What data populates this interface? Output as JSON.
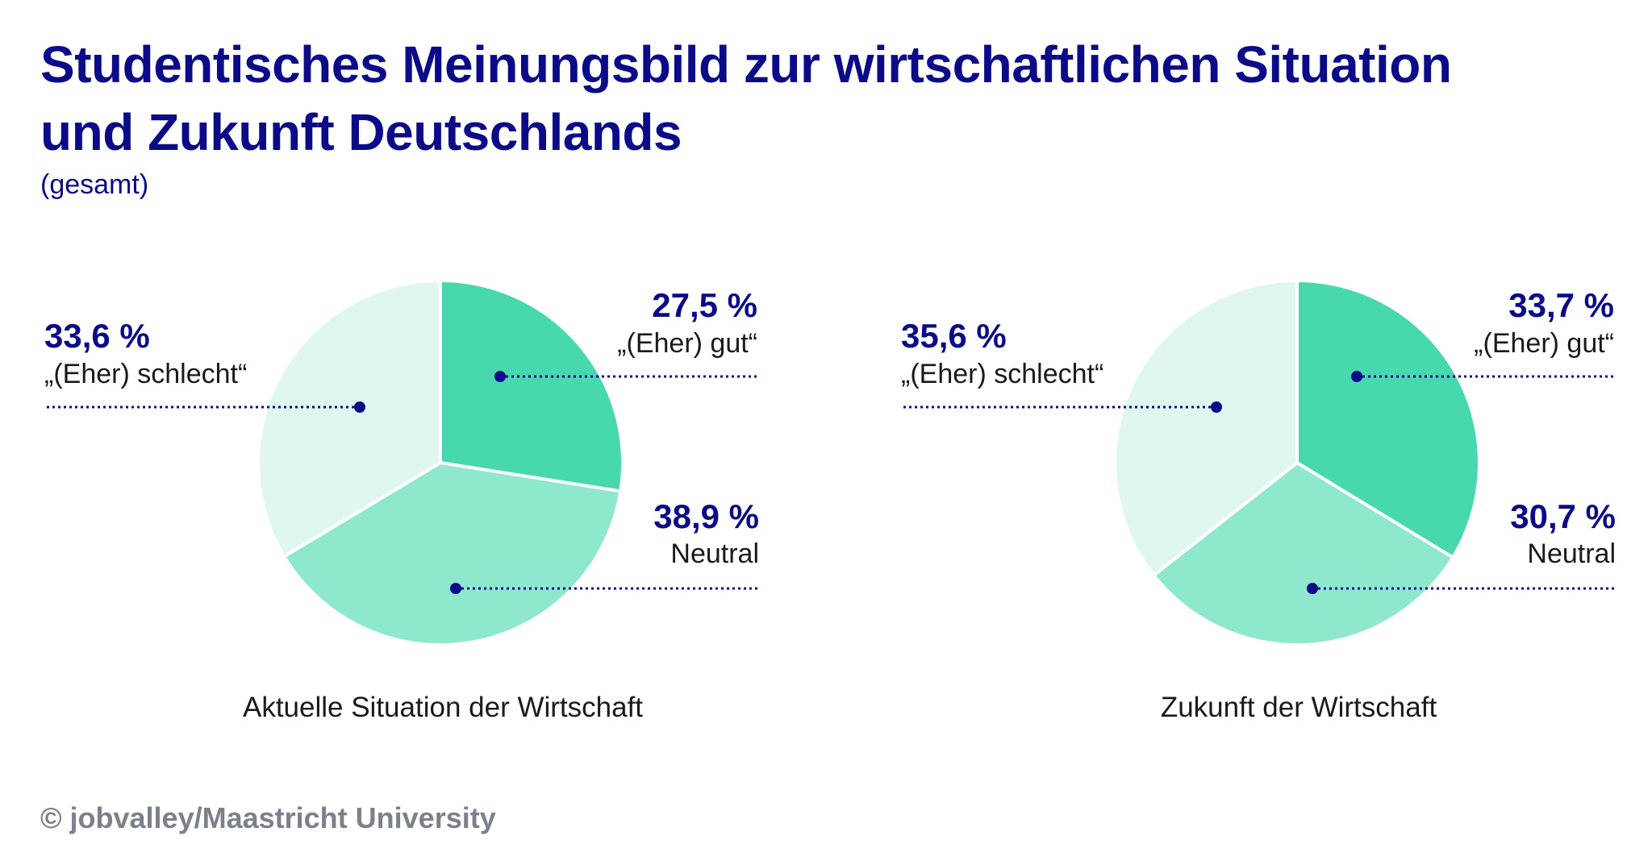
{
  "title_line1": "Studentisches Meinungsbild zur wirtschaftlichen Situation",
  "title_line2": "und Zukunft Deutschlands",
  "subtitle": "(gesamt)",
  "footer": "© jobvalley/Maastricht University",
  "colors": {
    "gut": "#48d8ad",
    "neutral": "#8ee8cd",
    "schlecht": "#e0f7f0",
    "accent": "#0b0b8a"
  },
  "chart_data": [
    {
      "type": "pie",
      "title": "Aktuelle Situation der Wirtschaft",
      "categories": [
        "„(Eher) gut“",
        "Neutral",
        "„(Eher) schlecht“"
      ],
      "values": [
        27.5,
        38.9,
        33.6
      ],
      "value_labels": [
        "27,5 %",
        "38,9 %",
        "33,6 %"
      ]
    },
    {
      "type": "pie",
      "title": "Zukunft der Wirtschaft",
      "categories": [
        "„(Eher) gut“",
        "Neutral",
        "„(Eher) schlecht“"
      ],
      "values": [
        33.7,
        30.7,
        35.6
      ],
      "value_labels": [
        "33,7 %",
        "30,7 %",
        "35,6 %"
      ]
    }
  ]
}
